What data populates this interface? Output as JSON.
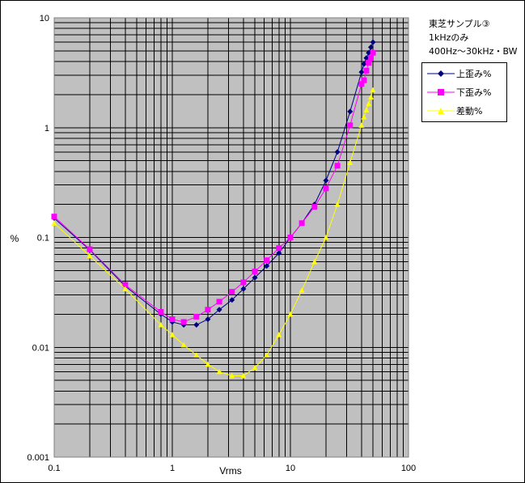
{
  "chart_data": {
    "type": "line",
    "title_lines": [
      "東芝サンプル③",
      "1kHzのみ",
      "400Hz～30kHz・BW"
    ],
    "xlabel": "Vrms",
    "ylabel": "%",
    "x_scale": "log",
    "y_scale": "log",
    "xlim": [
      0.1,
      100
    ],
    "ylim": [
      0.001,
      10
    ],
    "x_ticks": [
      "0.1",
      "1",
      "10",
      "100"
    ],
    "y_ticks": [
      "0.001",
      "0.01",
      "0.1",
      "1",
      "10"
    ],
    "grid": true,
    "legend_position": "right",
    "series": [
      {
        "name": "上歪み%",
        "color": "#000080",
        "marker": "diamond",
        "x": [
          0.1,
          0.2,
          0.4,
          0.8,
          1.0,
          1.25,
          1.6,
          2.0,
          2.5,
          3.2,
          4.0,
          5.0,
          6.3,
          8.0,
          10,
          12.5,
          16,
          20,
          25,
          32,
          40,
          42,
          44,
          46,
          48,
          50
        ],
        "y": [
          0.15,
          0.077,
          0.036,
          0.02,
          0.017,
          0.016,
          0.016,
          0.018,
          0.022,
          0.027,
          0.034,
          0.043,
          0.055,
          0.072,
          0.1,
          0.135,
          0.2,
          0.33,
          0.6,
          1.4,
          3.2,
          3.8,
          4.3,
          4.8,
          5.4,
          6.0
        ]
      },
      {
        "name": "下歪み%",
        "color": "#ff00ff",
        "marker": "square",
        "x": [
          0.1,
          0.2,
          0.4,
          0.8,
          1.0,
          1.25,
          1.6,
          2.0,
          2.5,
          3.2,
          4.0,
          5.0,
          6.3,
          8.0,
          10,
          12.5,
          16,
          20,
          25,
          32,
          40,
          42,
          44,
          46,
          48,
          50
        ],
        "y": [
          0.155,
          0.078,
          0.037,
          0.021,
          0.018,
          0.017,
          0.019,
          0.022,
          0.026,
          0.032,
          0.039,
          0.049,
          0.062,
          0.08,
          0.1,
          0.135,
          0.19,
          0.28,
          0.45,
          1.05,
          2.5,
          2.7,
          3.3,
          3.9,
          4.3,
          4.8
        ]
      },
      {
        "name": "差動%",
        "color": "#ffff00",
        "marker": "triangle",
        "x": [
          0.1,
          0.2,
          0.4,
          0.8,
          1.0,
          1.25,
          1.6,
          2.0,
          2.5,
          3.2,
          4.0,
          5.0,
          6.3,
          8.0,
          10,
          12.5,
          16,
          20,
          25,
          32,
          40,
          42,
          44,
          46,
          48,
          50
        ],
        "y": [
          0.135,
          0.068,
          0.034,
          0.016,
          0.013,
          0.0105,
          0.0085,
          0.007,
          0.006,
          0.0055,
          0.0055,
          0.0065,
          0.0085,
          0.013,
          0.02,
          0.033,
          0.06,
          0.1,
          0.2,
          0.48,
          1.05,
          1.25,
          1.45,
          1.65,
          1.9,
          2.2
        ]
      }
    ]
  }
}
